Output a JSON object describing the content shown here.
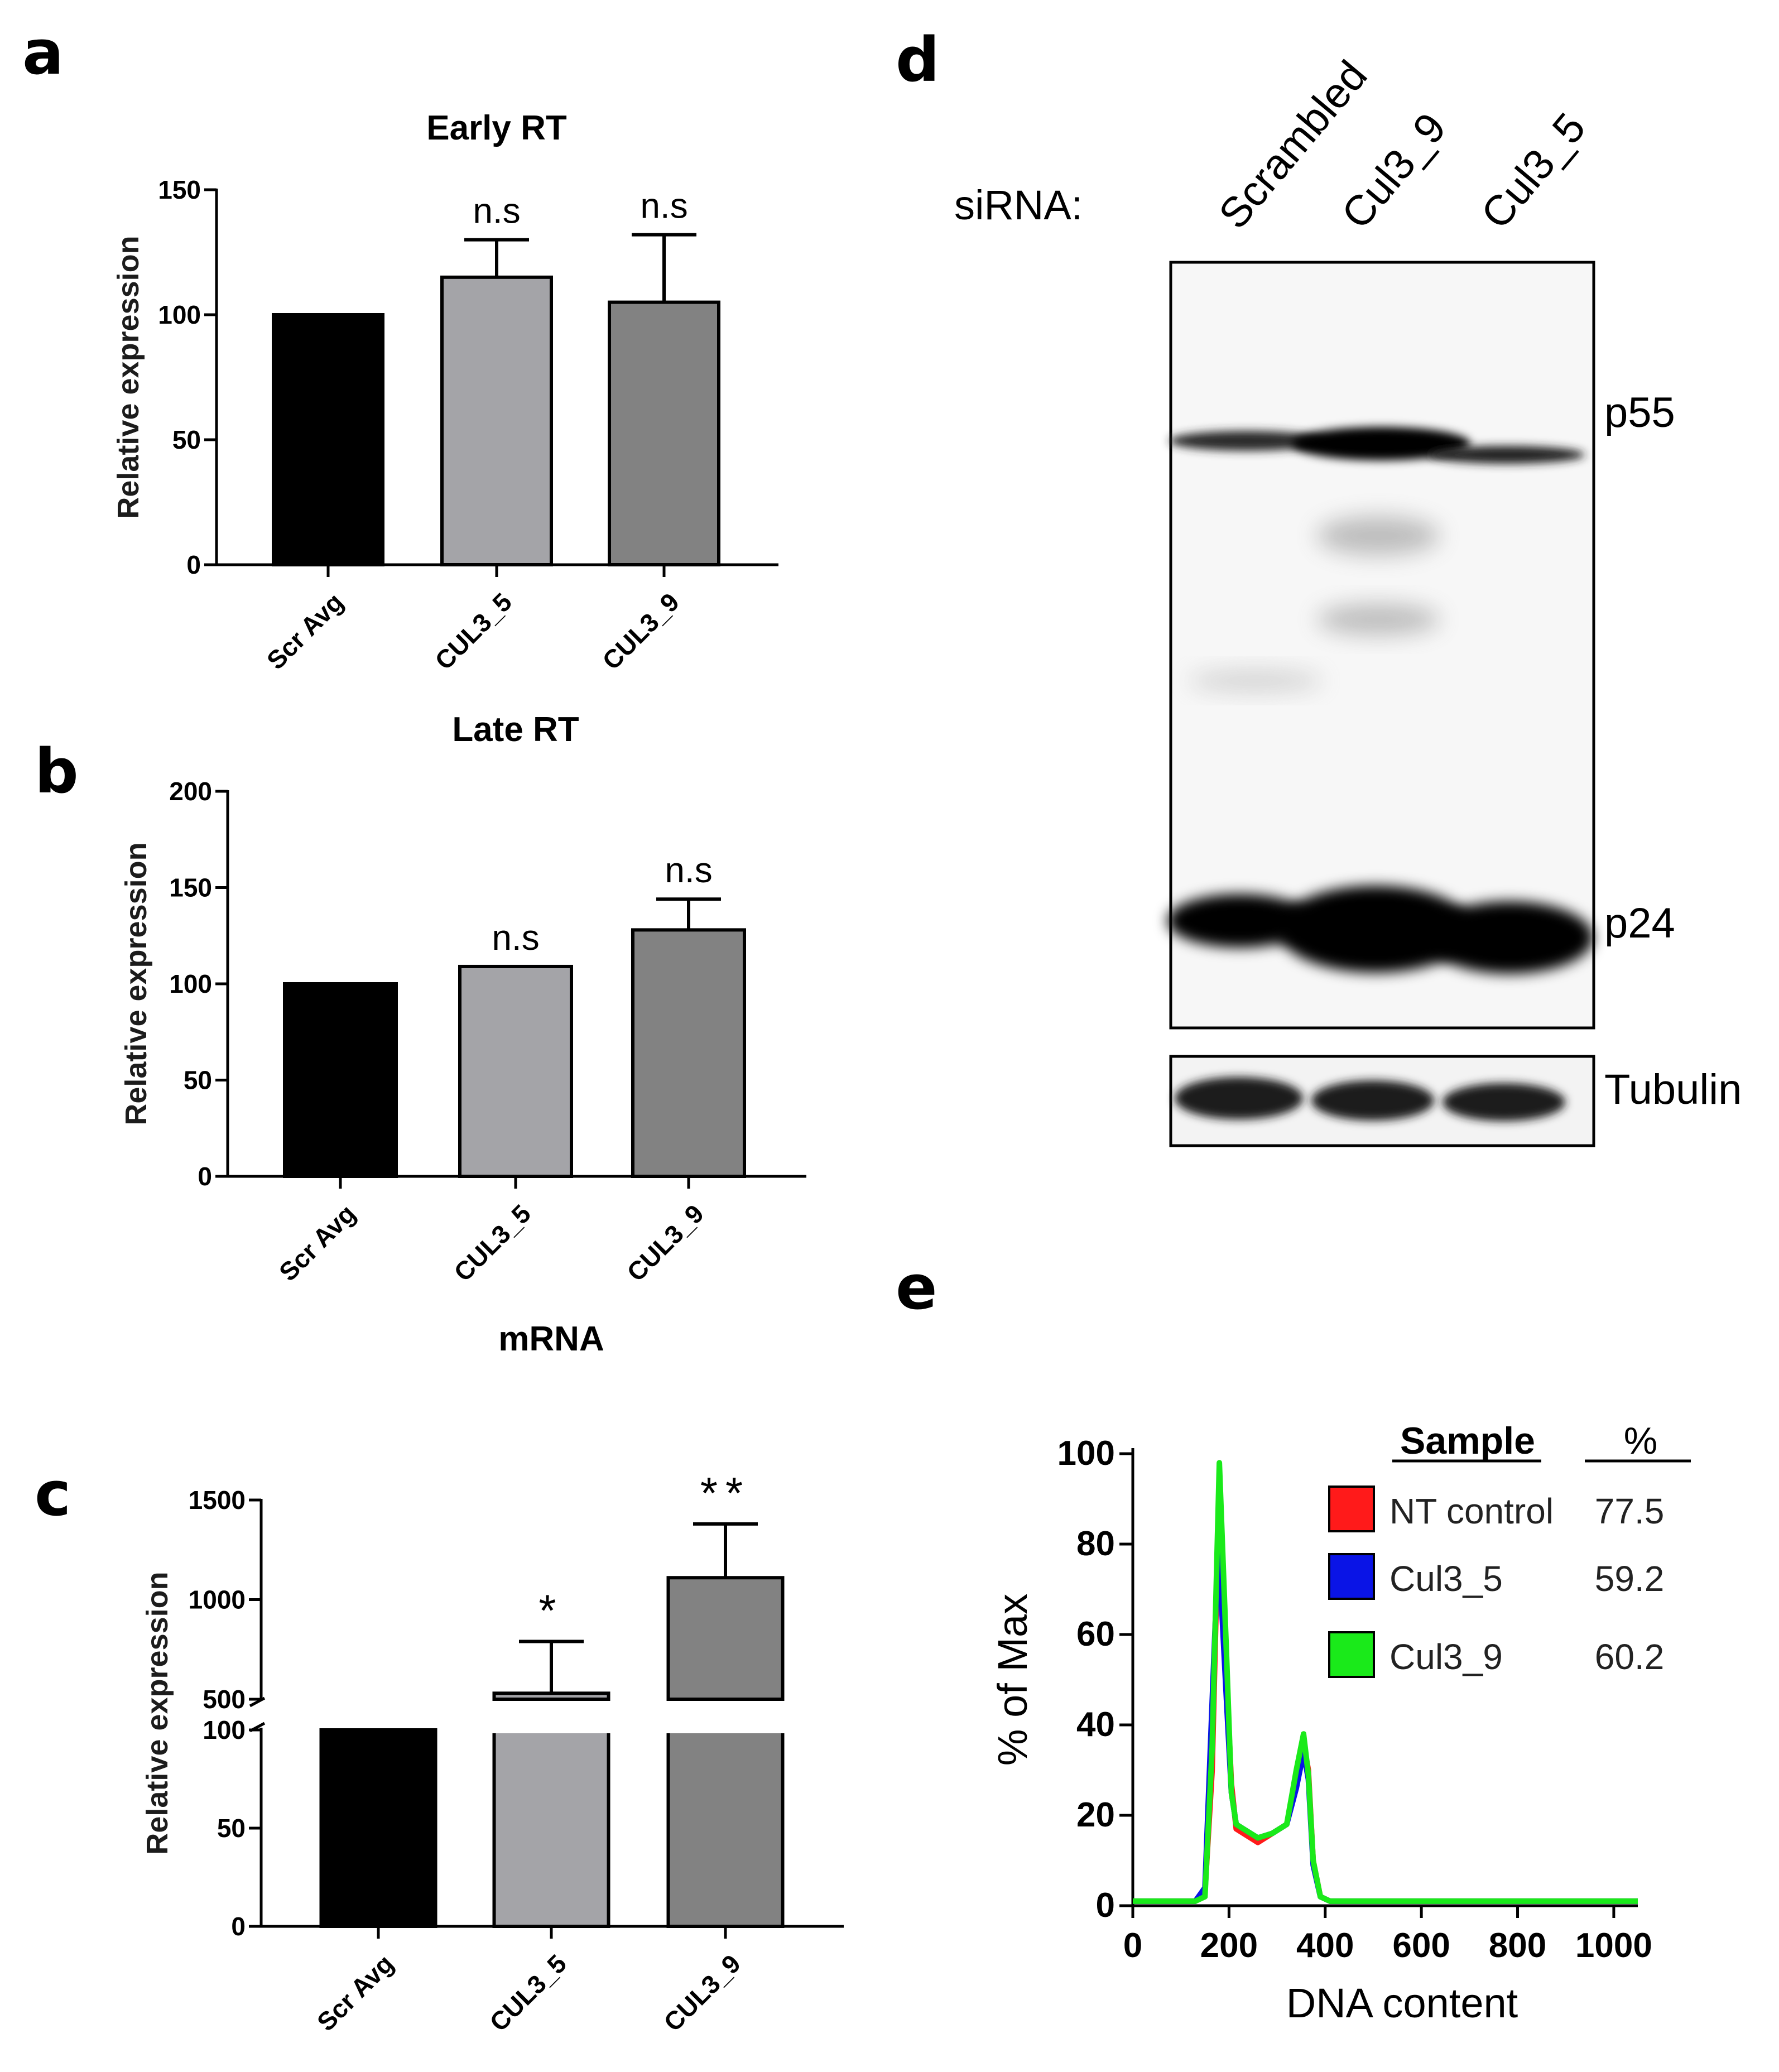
{
  "panels": {
    "a": "a",
    "b": "b",
    "c": "c",
    "d": "d",
    "e": "e"
  },
  "chart_data": [
    {
      "id": "a",
      "type": "bar",
      "title": "Early RT",
      "xlabel": "",
      "ylabel": "Relative expression",
      "ylim": [
        0,
        150
      ],
      "yticks": [
        "0",
        "50",
        "100",
        "150"
      ],
      "categories": [
        "Scr Avg",
        "CUL3_5",
        "CUL3_9"
      ],
      "values": [
        100,
        115,
        105
      ],
      "errors": [
        0,
        15,
        27
      ],
      "annotations": [
        "",
        "n.s",
        "n.s"
      ],
      "colors": [
        "#000000",
        "#a4a4a8",
        "#828282"
      ]
    },
    {
      "id": "b",
      "type": "bar",
      "title": "Late RT",
      "xlabel": "mRNA",
      "ylabel": "Relative expression",
      "ylim": [
        0,
        200
      ],
      "yticks": [
        "0",
        "50",
        "100",
        "150",
        "200"
      ],
      "categories": [
        "Scr Avg",
        "CUL3_5",
        "CUL3_9"
      ],
      "values": [
        100,
        109,
        128
      ],
      "errors": [
        0,
        0,
        16
      ],
      "annotations": [
        "",
        "n.s",
        "n.s"
      ],
      "colors": [
        "#000000",
        "#a4a4a8",
        "#828282"
      ]
    },
    {
      "id": "c",
      "type": "bar",
      "title": "",
      "xlabel": "",
      "ylabel": "Relative expression",
      "broken_axis": true,
      "lower_ylim": [
        0,
        100
      ],
      "upper_ylim": [
        500,
        1500
      ],
      "lower_yticks": [
        "0",
        "50",
        "100"
      ],
      "upper_yticks": [
        "500",
        "1000",
        "1500"
      ],
      "categories": [
        "Scr Avg",
        "CUL3_5",
        "CUL3_9"
      ],
      "values": [
        100,
        530,
        1110
      ],
      "errors": [
        0,
        260,
        270
      ],
      "annotations": [
        "",
        "*",
        "**"
      ],
      "colors": [
        "#000000",
        "#a4a4a8",
        "#828282"
      ]
    },
    {
      "id": "e",
      "type": "line",
      "title": "",
      "xlabel": "DNA content",
      "ylabel": "% of Max",
      "xlim": [
        0,
        1050
      ],
      "ylim": [
        0,
        100
      ],
      "xticks": [
        "0",
        "200",
        "400",
        "600",
        "800",
        "1000"
      ],
      "yticks": [
        "0",
        "20",
        "40",
        "60",
        "80",
        "100"
      ],
      "legend_header": {
        "sample": "Sample",
        "percent": "%"
      },
      "series": [
        {
          "name": "NT control",
          "percent": "77.5",
          "color": "#ff1a1a",
          "x": [
            0,
            130,
            150,
            165,
            180,
            195,
            205,
            215,
            230,
            260,
            290,
            320,
            340,
            355,
            365,
            375,
            390,
            410,
            1050
          ],
          "y": [
            1,
            1,
            3,
            30,
            95,
            50,
            27,
            17,
            16,
            14,
            16,
            18,
            28,
            36,
            30,
            10,
            2,
            1,
            1
          ]
        },
        {
          "name": "Cul3_5",
          "percent": "59.2",
          "color": "#0a14e6",
          "x": [
            0,
            130,
            150,
            165,
            178,
            195,
            205,
            215,
            230,
            260,
            290,
            320,
            340,
            355,
            365,
            375,
            390,
            410,
            1050
          ],
          "y": [
            1,
            1,
            4,
            45,
            80,
            45,
            25,
            18,
            17,
            15,
            16,
            18,
            26,
            34,
            28,
            9,
            2,
            1,
            1
          ]
        },
        {
          "name": "Cul3_9",
          "percent": "60.2",
          "color": "#1aea1a",
          "x": [
            0,
            130,
            150,
            165,
            180,
            195,
            205,
            215,
            230,
            260,
            290,
            320,
            340,
            355,
            365,
            375,
            390,
            410,
            1050
          ],
          "y": [
            1,
            1,
            2,
            35,
            98,
            55,
            25,
            18,
            17,
            15,
            16,
            18,
            30,
            38,
            29,
            10,
            2,
            1,
            1
          ]
        }
      ]
    }
  ],
  "blot": {
    "label": "siRNA:",
    "lanes": [
      "Scrambled",
      "Cul3_9",
      "Cul3_5"
    ],
    "bands": [
      "p55",
      "p24"
    ],
    "loading": "Tubulin"
  }
}
